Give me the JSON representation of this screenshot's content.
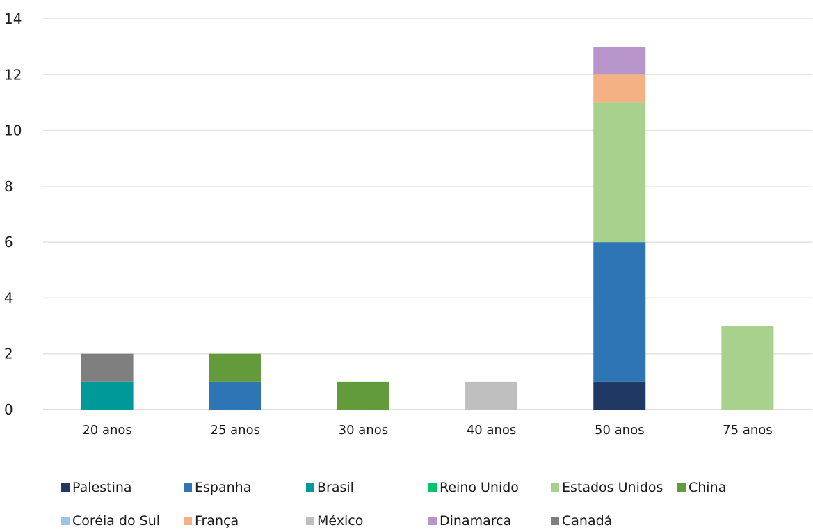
{
  "chart_data": {
    "type": "bar",
    "stacked": true,
    "title": "",
    "xlabel": "",
    "ylabel": "",
    "categories": [
      "20 anos",
      "25 anos",
      "30 anos",
      "40 anos",
      "50 anos",
      "75 anos"
    ],
    "ylim": [
      0,
      14
    ],
    "yticks": [
      0,
      2,
      4,
      6,
      8,
      10,
      12,
      14
    ],
    "grid": true,
    "legend_position": "bottom",
    "series": [
      {
        "name": "Palestina",
        "color": "#1f3864",
        "values": [
          0,
          0,
          0,
          0,
          1,
          0
        ]
      },
      {
        "name": "Espanha",
        "color": "#2e75b6",
        "values": [
          0,
          1,
          0,
          0,
          5,
          0
        ]
      },
      {
        "name": "Brasil",
        "color": "#00999a",
        "values": [
          1,
          0,
          0,
          0,
          0,
          0
        ]
      },
      {
        "name": "Reino Unido",
        "color": "#00c46a",
        "values": [
          0,
          0,
          0,
          0,
          0,
          0
        ]
      },
      {
        "name": "Estados Unidos",
        "color": "#a9d18e",
        "values": [
          0,
          0,
          0,
          0,
          5,
          3
        ]
      },
      {
        "name": "China",
        "color": "#629a3c",
        "values": [
          0,
          1,
          1,
          0,
          0,
          0
        ]
      },
      {
        "name": "Coréia do Sul",
        "color": "#9dc3e6",
        "values": [
          0,
          0,
          0,
          0,
          0,
          0
        ]
      },
      {
        "name": "França",
        "color": "#f4b183",
        "values": [
          0,
          0,
          0,
          0,
          1,
          0
        ]
      },
      {
        "name": "México",
        "color": "#bfbfbf",
        "values": [
          0,
          0,
          0,
          1,
          0,
          0
        ]
      },
      {
        "name": "Dinamarca",
        "color": "#b794ca",
        "values": [
          0,
          0,
          0,
          0,
          1,
          0
        ]
      },
      {
        "name": "Canadá",
        "color": "#7f7f7f",
        "values": [
          1,
          0,
          0,
          0,
          0,
          0
        ]
      }
    ]
  }
}
